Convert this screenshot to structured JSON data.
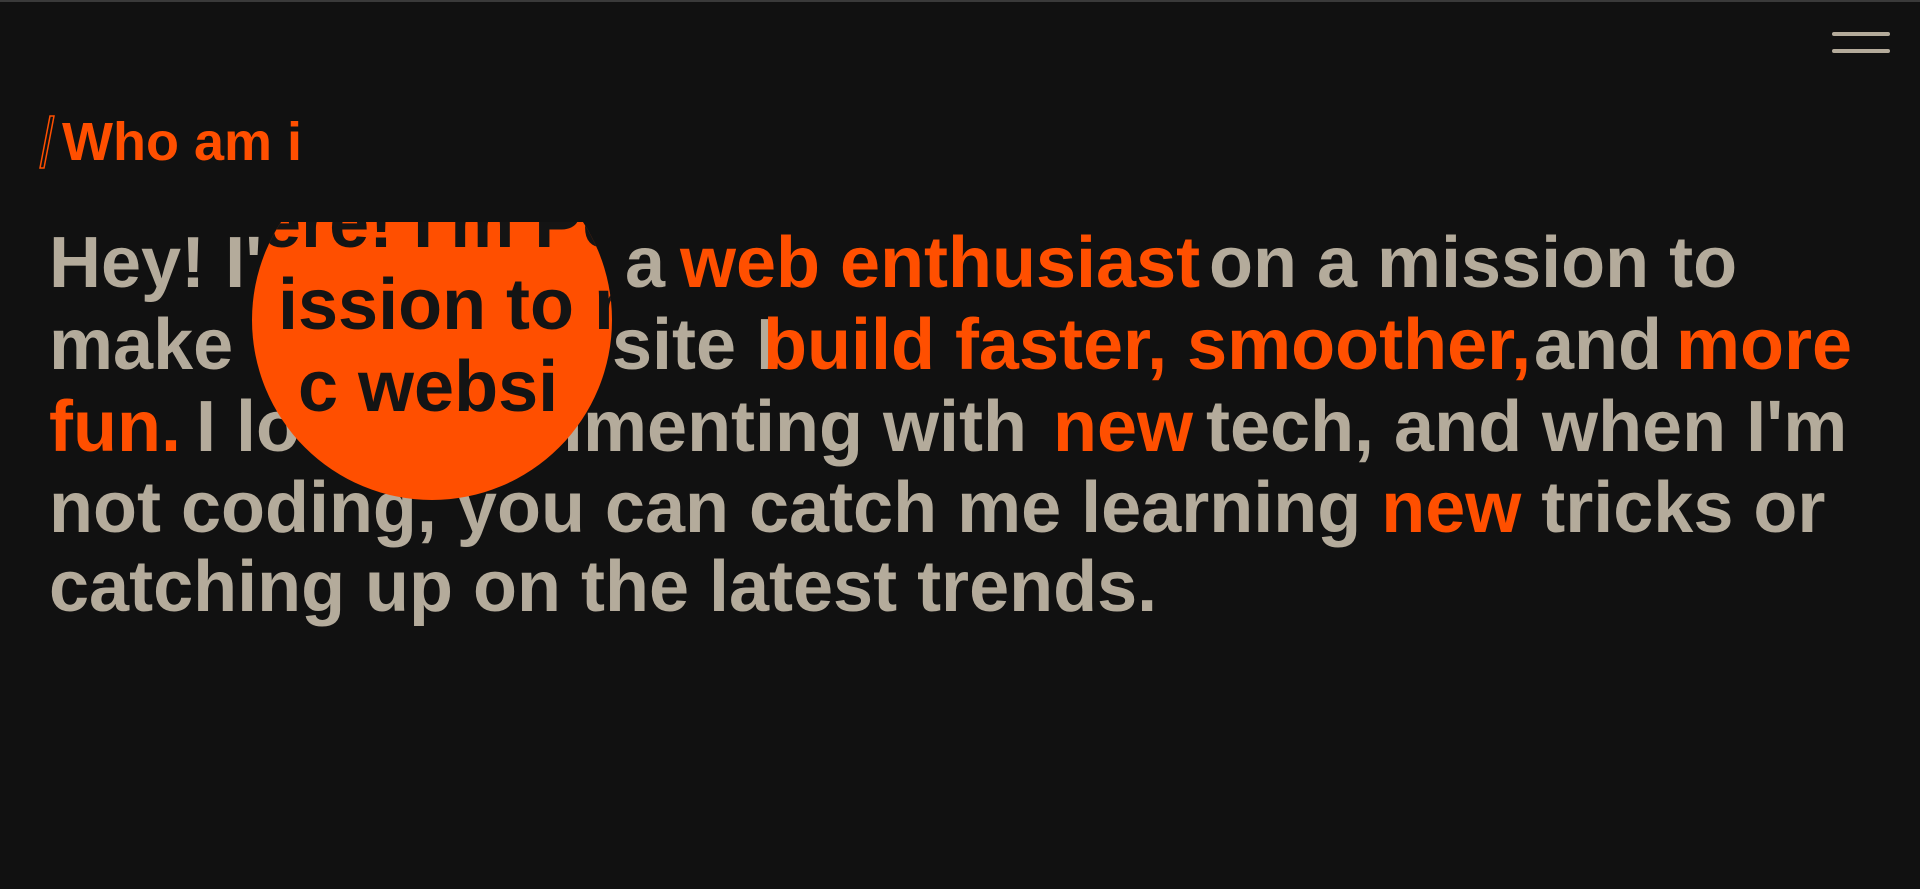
{
  "header": {
    "title": "Who am i"
  },
  "paragraph": {
    "lines": [
      [
        {
          "text": "Hey! I'",
          "accent": false
        },
        {
          "text": "a",
          "accent": false
        },
        {
          "text": "web enthusiast",
          "accent": true
        },
        {
          "text": "on a mission to",
          "accent": false
        }
      ],
      [
        {
          "text": "make",
          "accent": false
        },
        {
          "text": "site I",
          "accent": false
        },
        {
          "text": "build faster, smoother,",
          "accent": true
        },
        {
          "text": "and",
          "accent": false
        },
        {
          "text": "more",
          "accent": true
        }
      ],
      [
        {
          "text": "fun.",
          "accent": true
        },
        {
          "text": "I lo",
          "accent": false
        },
        {
          "text": "imenting with",
          "accent": false
        },
        {
          "text": "new",
          "accent": true
        },
        {
          "text": "tech, and when I'm",
          "accent": false
        }
      ],
      [
        {
          "text": "not coding, you can catch me learning ",
          "accent": false
        },
        {
          "text": "new",
          "accent": true
        },
        {
          "text": " tricks or",
          "accent": false
        }
      ],
      [
        {
          "text": "catching up on the latest trends.",
          "accent": false
        }
      ]
    ]
  },
  "reveal": {
    "lines": [
      "ere! I'm Pe",
      "ission to m",
      "c websi"
    ]
  }
}
